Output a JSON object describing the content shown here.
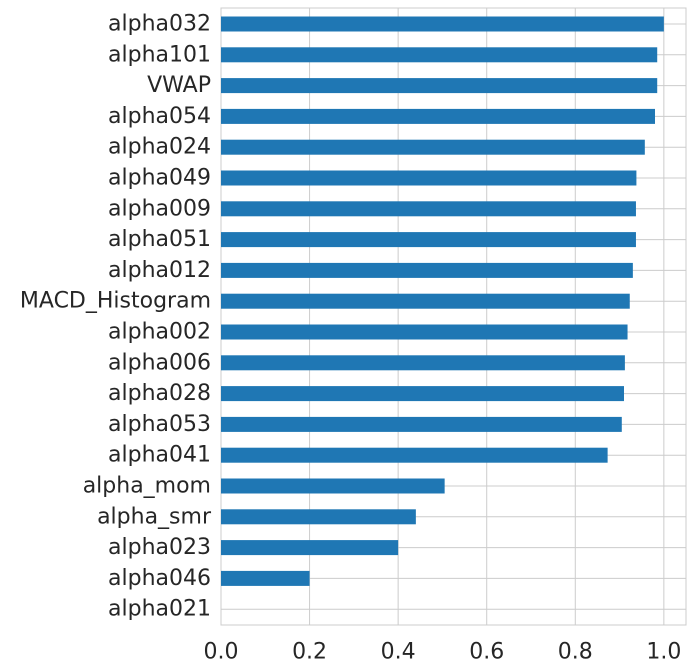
{
  "chart_data": {
    "type": "bar",
    "orientation": "horizontal",
    "categories": [
      "alpha032",
      "alpha101",
      "VWAP",
      "alpha054",
      "alpha024",
      "alpha049",
      "alpha009",
      "alpha051",
      "alpha012",
      "MACD_Histogram",
      "alpha002",
      "alpha006",
      "alpha028",
      "alpha053",
      "alpha041",
      "alpha_mom",
      "alpha_smr",
      "alpha023",
      "alpha046",
      "alpha021"
    ],
    "values": [
      1.0,
      0.985,
      0.985,
      0.98,
      0.957,
      0.938,
      0.937,
      0.937,
      0.93,
      0.923,
      0.918,
      0.912,
      0.91,
      0.905,
      0.873,
      0.505,
      0.44,
      0.4,
      0.2,
      0.0
    ],
    "x_ticks": [
      "0.0",
      "0.2",
      "0.4",
      "0.6",
      "0.8",
      "1.0"
    ],
    "xlim": [
      0,
      1.05
    ],
    "grid": true,
    "colors": {
      "bar": "#1f77b4",
      "grid": "#cccccc",
      "text": "#262626"
    }
  }
}
